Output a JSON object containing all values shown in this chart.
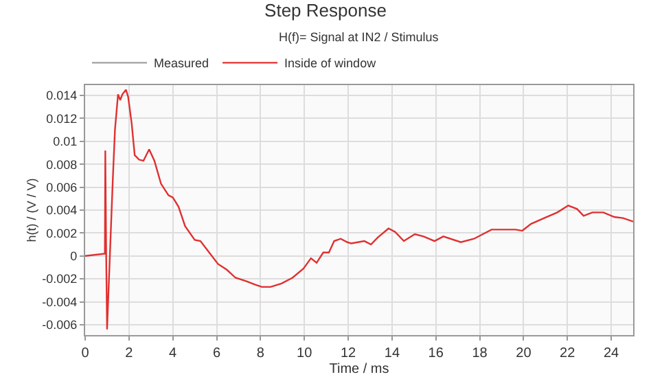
{
  "chart_data": {
    "type": "line",
    "title": "Step Response",
    "subtitle": "H(f)= Signal at IN2 / Stimulus",
    "xlabel": "Time / ms",
    "ylabel": "h(t) / (V / V)",
    "x": [
      0,
      0.9,
      0.92,
      0.96,
      1.0,
      1.16,
      1.26,
      1.36,
      1.5,
      1.6,
      1.7,
      1.86,
      1.96,
      2.12,
      2.26,
      2.46,
      2.66,
      2.92,
      3.16,
      3.46,
      3.8,
      4.0,
      4.26,
      4.56,
      5.0,
      5.26,
      5.66,
      6.06,
      6.46,
      6.86,
      7.36,
      7.76,
      8.06,
      8.46,
      8.96,
      9.46,
      9.96,
      10.3,
      10.56,
      10.86,
      11.12,
      11.36,
      11.66,
      11.96,
      12.14,
      12.74,
      13.04,
      13.34,
      13.84,
      14.14,
      14.54,
      15.04,
      15.44,
      15.94,
      16.34,
      17.14,
      17.74,
      18.54,
      19.14,
      19.64,
      19.94,
      20.34,
      20.94,
      21.54,
      22.04,
      22.44,
      22.74,
      23.14,
      23.64,
      24.14,
      24.54,
      25.0
    ],
    "series": [
      {
        "name": "Measured",
        "color": "#a0a0a0",
        "values": [
          null,
          null,
          null,
          null,
          null,
          null,
          null,
          null,
          null,
          null,
          null,
          null,
          null,
          null,
          null,
          null,
          null,
          null,
          null,
          null,
          null,
          null,
          null,
          null,
          null,
          null,
          null,
          null,
          null,
          null,
          null,
          null,
          null,
          null,
          null,
          null,
          null,
          null,
          null,
          null,
          null,
          null,
          null,
          null,
          null,
          null,
          null,
          null,
          null,
          null,
          null,
          null,
          null,
          null,
          null,
          null,
          null,
          null,
          null,
          null,
          null,
          null,
          null,
          null,
          null,
          null,
          null,
          null,
          null,
          null,
          null,
          null
        ]
      },
      {
        "name": "Inside of window",
        "color": "#e03030",
        "values": [
          0,
          0.0002,
          0.0092,
          0.0,
          -0.0064,
          0.0016,
          0.0066,
          0.011,
          0.0141,
          0.0136,
          0.0141,
          0.0145,
          0.0139,
          0.0116,
          0.0088,
          0.0084,
          0.0083,
          0.0093,
          0.0083,
          0.0063,
          0.0053,
          0.0051,
          0.0043,
          0.0026,
          0.0014,
          0.0013,
          0.0003,
          -0.0007,
          -0.0012,
          -0.0019,
          -0.0022,
          -0.0025,
          -0.0027,
          -0.0027,
          -0.0024,
          -0.0019,
          -0.0011,
          -0.0002,
          -0.0006,
          0.0003,
          0.0003,
          0.0013,
          0.0015,
          0.0012,
          0.0011,
          0.0013,
          0.001,
          0.0016,
          0.0024,
          0.0021,
          0.0013,
          0.0019,
          0.0017,
          0.0013,
          0.0017,
          0.0012,
          0.0015,
          0.0023,
          0.0023,
          0.0023,
          0.0022,
          0.0028,
          0.0033,
          0.0038,
          0.0044,
          0.0041,
          0.0035,
          0.0038,
          0.0038,
          0.0034,
          0.0033,
          0.003
        ]
      }
    ],
    "xlim": [
      0,
      25
    ],
    "xticks": [
      0,
      2,
      4,
      6,
      8,
      10,
      12,
      14,
      16,
      18,
      20,
      22,
      24
    ],
    "ylim": [
      -0.0069,
      0.0149
    ],
    "yticks": [
      -0.006,
      -0.004,
      -0.002,
      0,
      0.002,
      0.004,
      0.006,
      0.008,
      0.01,
      0.012,
      0.014
    ],
    "grid": true,
    "legend": "top left",
    "marker": "none",
    "line_style": "solid"
  }
}
